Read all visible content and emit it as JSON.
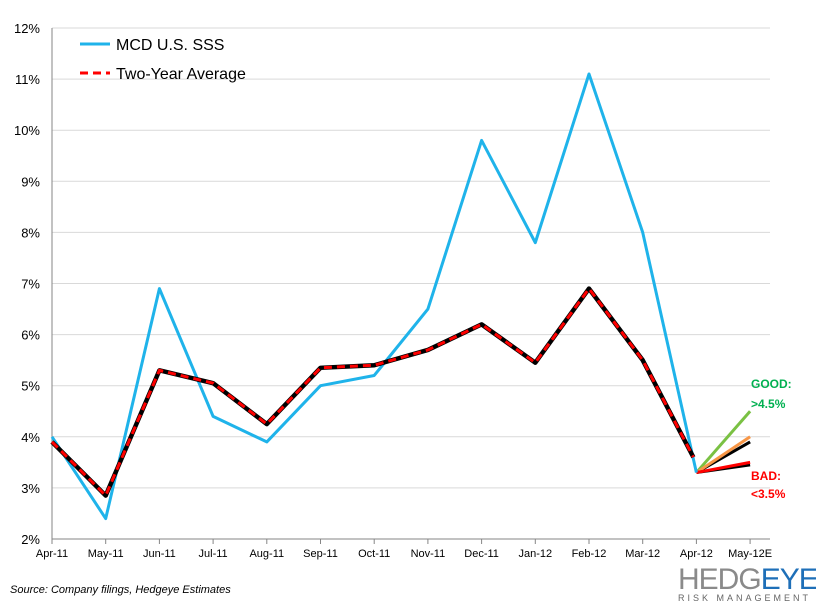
{
  "chart_data": {
    "type": "line",
    "title": "",
    "xlabel": "",
    "ylabel": "",
    "categories": [
      "Apr-11",
      "May-11",
      "Jun-11",
      "Jul-11",
      "Aug-11",
      "Sep-11",
      "Oct-11",
      "Nov-11",
      "Dec-11",
      "Jan-12",
      "Feb-12",
      "Mar-12",
      "Apr-12",
      "May-12E"
    ],
    "ylim": [
      2,
      12
    ],
    "yticks": [
      "2%",
      "3%",
      "4%",
      "5%",
      "6%",
      "7%",
      "8%",
      "9%",
      "10%",
      "11%",
      "12%"
    ],
    "grid": true,
    "legend_position": "top-left",
    "series": [
      {
        "name": "MCD U.S. SSS",
        "color": "#1fb3ea",
        "style": "solid",
        "values": [
          4.0,
          2.4,
          6.9,
          4.4,
          3.9,
          5.0,
          5.2,
          6.5,
          9.8,
          7.8,
          11.1,
          8.0,
          3.3,
          null
        ]
      },
      {
        "name": "Two-Year Average",
        "color": "#ff0000",
        "style": "dashed",
        "values": [
          3.9,
          2.85,
          5.3,
          5.05,
          4.25,
          5.35,
          5.4,
          5.7,
          6.2,
          5.45,
          6.9,
          5.5,
          3.6,
          null
        ]
      }
    ],
    "scenarios": [
      {
        "color": "#7ac143",
        "from": 3.3,
        "to": 4.5
      },
      {
        "color": "#000000",
        "from": 3.3,
        "to": 3.9
      },
      {
        "color": "#f79646",
        "from": 3.3,
        "to": 4.0
      },
      {
        "color": "#000000",
        "from": 3.3,
        "to": 3.45
      },
      {
        "color": "#ff0000",
        "from": 3.3,
        "to": 3.5
      }
    ],
    "annotations": [
      {
        "text": "GOOD:",
        "color": "#00b050"
      },
      {
        "text": ">4.5%",
        "color": "#00b050"
      },
      {
        "text": "BAD:",
        "color": "#ff0000"
      },
      {
        "text": "<3.5%",
        "color": "#ff0000"
      }
    ]
  },
  "footer": {
    "source": "Source: Company filings, Hedgeye Estimates",
    "logo_text": "HEDGEYE",
    "logo_sub": "RISK MANAGEMENT"
  }
}
